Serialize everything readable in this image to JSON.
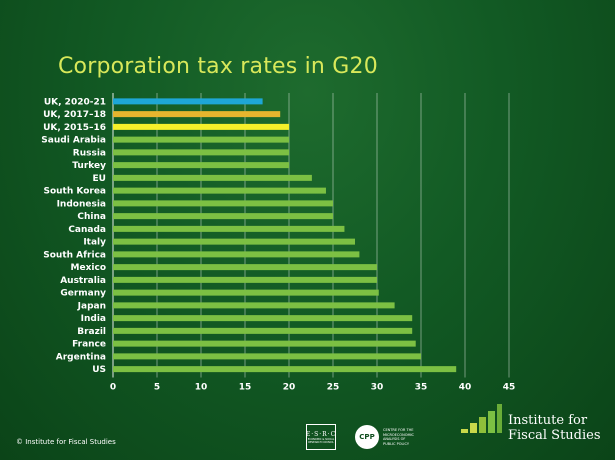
{
  "chart_data": {
    "type": "bar",
    "orientation": "horizontal",
    "title": "Corporation tax rates in G20",
    "xlabel": "",
    "ylabel": "",
    "xlim": [
      0,
      45
    ],
    "xticks": [
      0,
      5,
      10,
      15,
      20,
      25,
      30,
      35,
      40,
      45
    ],
    "grid": true,
    "legend": "none",
    "categories": [
      "UK, 2020-21",
      "UK, 2017–18",
      "UK, 2015–16",
      "Saudi Arabia",
      "Russia",
      "Turkey",
      "EU",
      "South Korea",
      "Indonesia",
      "China",
      "Canada",
      "Italy",
      "South Africa",
      "Mexico",
      "Australia",
      "Germany",
      "Japan",
      "India",
      "Brazil",
      "France",
      "Argentina",
      "US"
    ],
    "values": [
      17,
      19,
      20,
      20,
      20,
      20,
      22.6,
      24.2,
      25,
      25,
      26.3,
      27.5,
      28,
      30,
      30,
      30.2,
      32,
      34,
      34,
      34.4,
      35,
      39
    ],
    "bar_colors": [
      "#1ea7d6",
      "#e6b52e",
      "#f5f02a",
      "#7cc043",
      "#7cc043",
      "#7cc043",
      "#7cc043",
      "#7cc043",
      "#7cc043",
      "#7cc043",
      "#7cc043",
      "#7cc043",
      "#7cc043",
      "#7cc043",
      "#7cc043",
      "#7cc043",
      "#7cc043",
      "#7cc043",
      "#7cc043",
      "#7cc043",
      "#7cc043",
      "#7cc043"
    ]
  },
  "colors": {
    "title": "#d8e85a",
    "grid": "#ffffff",
    "label": "#ffffff"
  },
  "footer": {
    "copyright": "© Institute for Fiscal Studies",
    "esrc_top": "E·S·R·C",
    "esrc_sub": "ECONOMIC & SOCIAL RESEARCH COUNCIL",
    "cpp_logo": "CPP",
    "cpp_text_1": "CENTRE FOR THE",
    "cpp_text_2": "MICROECONOMIC",
    "cpp_text_3": "ANALYSIS OF",
    "cpp_text_4": "PUBLIC POLICY",
    "ifs_line_1": "Institute for",
    "ifs_line_2": "Fiscal Studies"
  }
}
